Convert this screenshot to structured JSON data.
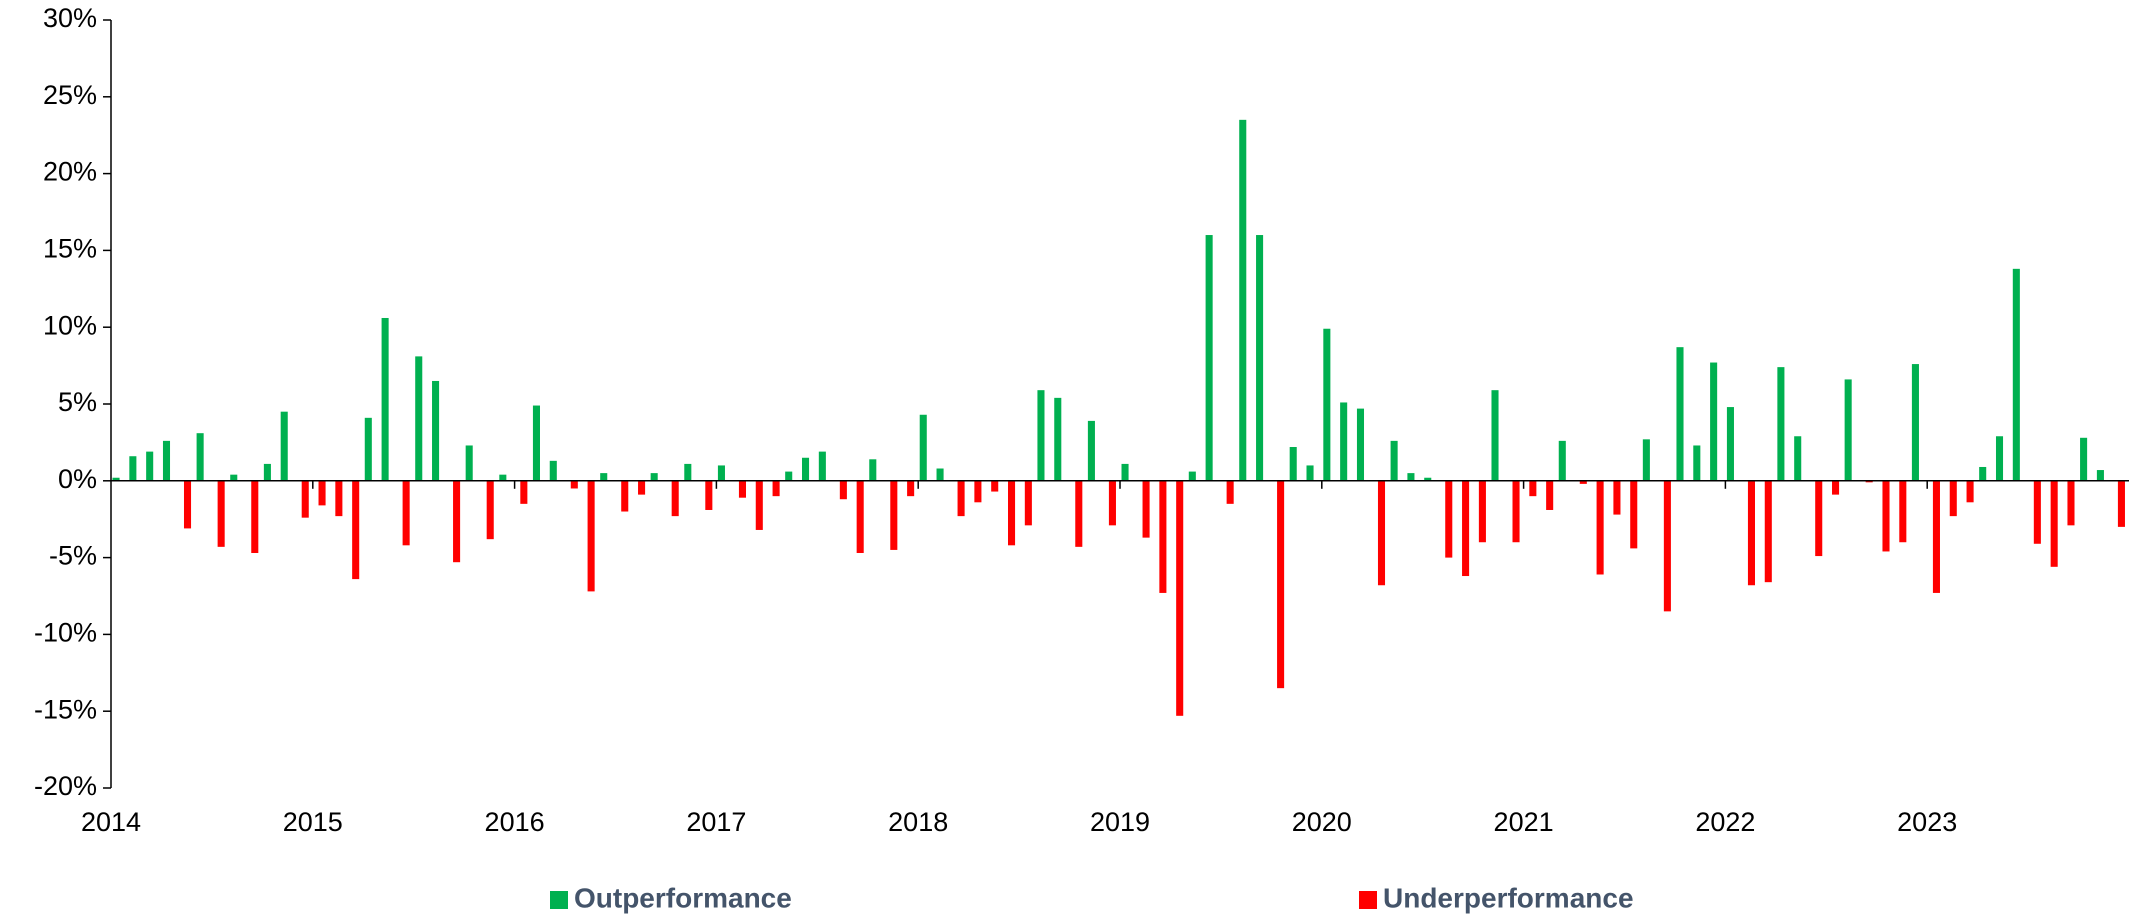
{
  "chart_data": {
    "type": "bar",
    "categories": [
      "2014",
      null,
      null,
      null,
      null,
      null,
      null,
      null,
      null,
      null,
      null,
      null,
      "2015",
      null,
      null,
      null,
      null,
      null,
      null,
      null,
      null,
      null,
      null,
      null,
      "2016",
      null,
      null,
      null,
      null,
      null,
      null,
      null,
      null,
      null,
      null,
      null,
      "2017",
      null,
      null,
      null,
      null,
      null,
      null,
      null,
      null,
      null,
      null,
      null,
      "2018",
      null,
      null,
      null,
      null,
      null,
      null,
      null,
      null,
      null,
      null,
      null,
      "2019",
      null,
      null,
      null,
      null,
      null,
      null,
      null,
      null,
      null,
      null,
      null,
      "2020",
      null,
      null,
      null,
      null,
      null,
      null,
      null,
      null,
      null,
      null,
      null,
      "2021",
      null,
      null,
      null,
      null,
      null,
      null,
      null,
      null,
      null,
      null,
      null,
      "2022",
      null,
      null,
      null,
      null,
      null,
      null,
      null,
      null,
      null,
      null,
      null,
      "2023",
      null,
      null,
      null,
      null,
      null,
      null,
      null,
      null,
      null,
      null,
      null
    ],
    "series": [
      {
        "name": "Outperformance",
        "color": "#00b050",
        "values": [
          0.2,
          1.6,
          1.9,
          2.6,
          null,
          3.1,
          null,
          0.4,
          null,
          1.1,
          4.5,
          null,
          null,
          null,
          null,
          4.1,
          10.6,
          null,
          8.1,
          6.5,
          null,
          2.3,
          null,
          0.4,
          null,
          4.9,
          1.3,
          null,
          null,
          0.5,
          null,
          null,
          0.5,
          null,
          1.1,
          null,
          1.0,
          null,
          null,
          null,
          0.6,
          1.5,
          1.9,
          null,
          null,
          1.4,
          null,
          null,
          4.3,
          0.8,
          null,
          null,
          null,
          null,
          null,
          5.9,
          5.4,
          null,
          3.9,
          null,
          1.1,
          null,
          null,
          null,
          0.6,
          16.0,
          null,
          23.5,
          16.0,
          null,
          2.2,
          1.0,
          9.9,
          5.1,
          4.7,
          null,
          2.6,
          0.5,
          0.2,
          null,
          null,
          null,
          5.9,
          null,
          null,
          null,
          2.6,
          null,
          null,
          null,
          null,
          2.7,
          null,
          8.7,
          2.3,
          7.7,
          4.8,
          null,
          null,
          7.4,
          2.9,
          null,
          null,
          6.6,
          null,
          null,
          null,
          7.6,
          null,
          null,
          null,
          0.9,
          2.9,
          13.8,
          null,
          null,
          null,
          2.8,
          0.7,
          null
        ]
      },
      {
        "name": "Underperformance",
        "color": "#ff0000",
        "values": [
          null,
          null,
          null,
          null,
          -3.1,
          null,
          -4.3,
          null,
          -4.7,
          null,
          null,
          -2.4,
          -1.6,
          -2.3,
          -6.4,
          null,
          null,
          -4.2,
          null,
          null,
          -5.3,
          null,
          -3.8,
          null,
          -1.5,
          null,
          null,
          -0.5,
          -7.2,
          null,
          -2.0,
          -0.9,
          null,
          -2.3,
          null,
          -1.9,
          null,
          -1.1,
          -3.2,
          -1.0,
          null,
          null,
          null,
          -1.2,
          -4.7,
          null,
          -4.5,
          -1.0,
          null,
          null,
          -2.3,
          -1.4,
          -0.7,
          -4.2,
          -2.9,
          null,
          null,
          -4.3,
          null,
          -2.9,
          null,
          -3.7,
          -7.3,
          -15.3,
          null,
          null,
          -1.5,
          null,
          null,
          -13.5,
          null,
          null,
          null,
          null,
          null,
          -6.8,
          null,
          null,
          null,
          -5.0,
          -6.2,
          -4.0,
          null,
          -4.0,
          -1.0,
          -1.9,
          null,
          -0.2,
          -6.1,
          -2.2,
          -4.4,
          null,
          -8.5,
          null,
          null,
          null,
          null,
          -6.8,
          -6.6,
          null,
          null,
          -4.9,
          -0.9,
          null,
          -0.1,
          -4.6,
          -4.0,
          null,
          -7.3,
          -2.3,
          -1.4,
          null,
          null,
          null,
          -4.1,
          -5.6,
          -2.9,
          null,
          null,
          -3.0
        ]
      }
    ],
    "ylim": [
      -20,
      30
    ],
    "yticks": [
      {
        "value": -20,
        "label": "-20%"
      },
      {
        "value": -15,
        "label": "-15%"
      },
      {
        "value": -10,
        "label": "-10%"
      },
      {
        "value": -5,
        "label": "-5%"
      },
      {
        "value": 0,
        "label": "0%"
      },
      {
        "value": 5,
        "label": "5%"
      },
      {
        "value": 10,
        "label": "10%"
      },
      {
        "value": 15,
        "label": "15%"
      },
      {
        "value": 20,
        "label": "20%"
      },
      {
        "value": 25,
        "label": "25%"
      },
      {
        "value": 30,
        "label": "30%"
      }
    ],
    "legend": "bottom"
  }
}
